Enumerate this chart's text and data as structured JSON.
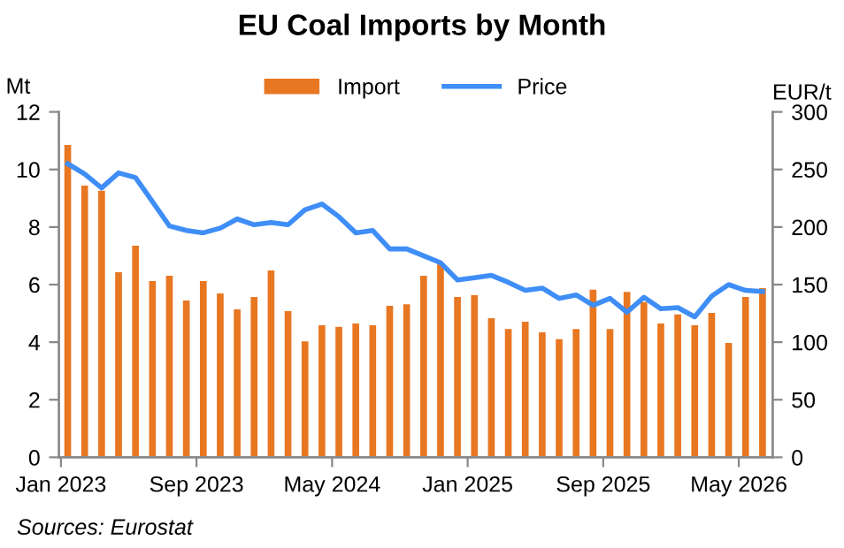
{
  "chart_data": {
    "type": "bar",
    "title": "EU Coal Imports by Month",
    "ylabel": "Mt",
    "y2label": "EUR/t",
    "categories": [
      "Jan 2023",
      null,
      null,
      null,
      null,
      null,
      null,
      null,
      "Sep 2023",
      null,
      null,
      null,
      null,
      null,
      null,
      null,
      "May 2024",
      null,
      null,
      null,
      null,
      null,
      null,
      null,
      "Jan 2025",
      null,
      null,
      null,
      null,
      null,
      null,
      null,
      "Sep 2025",
      null,
      null,
      null,
      null,
      null,
      null,
      null,
      "May 2026",
      null
    ],
    "series": [
      {
        "name": "Import",
        "color": "#e87722",
        "values": [
          10.85,
          9.44,
          9.26,
          6.43,
          7.35,
          6.12,
          6.31,
          5.45,
          6.12,
          5.69,
          5.14,
          5.57,
          6.49,
          5.08,
          4.03,
          4.59,
          4.53,
          4.65,
          4.59,
          5.26,
          5.32,
          6.31,
          6.74,
          5.57,
          5.63,
          4.83,
          4.46,
          4.71,
          4.34,
          4.1,
          4.46,
          5.82,
          4.46,
          5.75,
          5.39,
          4.65,
          4.96,
          4.59,
          5.02,
          3.97,
          5.57,
          5.88
        ]
      },
      {
        "name": "Price",
        "type": "line",
        "axis": "y2",
        "color": "#3f8ef7",
        "values": [
          255,
          246,
          234,
          247,
          243,
          222,
          201,
          197,
          195,
          199,
          207,
          202,
          204,
          202,
          215,
          220,
          209,
          195,
          197,
          181,
          181,
          175,
          169,
          154,
          156,
          158,
          152,
          145,
          147,
          138,
          141,
          132,
          138,
          126,
          139,
          129,
          130,
          122,
          140,
          150,
          145,
          144
        ]
      }
    ],
    "ylim": [
      0,
      12
    ],
    "yticks": [
      0,
      2,
      4,
      6,
      8,
      10,
      12
    ],
    "y2lim": [
      0,
      300
    ],
    "y2ticks": [
      0,
      50,
      100,
      150,
      200,
      250,
      300
    ],
    "grid": false,
    "legend": "top",
    "marker": "none",
    "line_style": "solid",
    "annotations": [
      "Sources: Eurostat"
    ]
  }
}
